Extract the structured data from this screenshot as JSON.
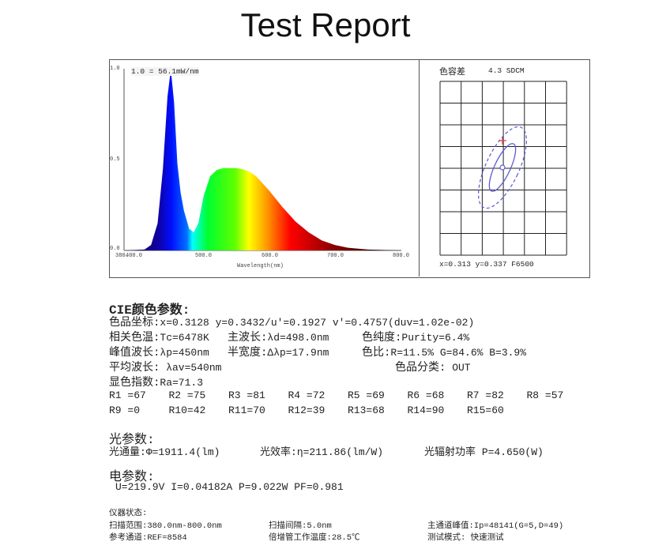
{
  "title": "Test Report",
  "spectrum": {
    "scale_label": "1.0 = 56.1mW/nm",
    "xlabel": "Wavelength(nm)",
    "x_ticks": [
      "380.",
      "400.0",
      "500.0",
      "600.0",
      "700.0",
      "800.0"
    ],
    "y_ticks": [
      "1.0",
      "0.5",
      "0.0"
    ]
  },
  "chart_data": {
    "type": "area",
    "xlabel": "Wavelength(nm)",
    "xlim": [
      380,
      800
    ],
    "ylim": [
      0,
      1.0
    ],
    "x": [
      380,
      410,
      420,
      430,
      438,
      445,
      450,
      455,
      460,
      465,
      470,
      478,
      485,
      492,
      500,
      510,
      520,
      530,
      550,
      560,
      570,
      580,
      600,
      620,
      640,
      660,
      680,
      700,
      720,
      750,
      800
    ],
    "y": [
      0,
      0.005,
      0.03,
      0.15,
      0.45,
      0.85,
      1.0,
      0.82,
      0.48,
      0.32,
      0.22,
      0.12,
      0.1,
      0.15,
      0.3,
      0.41,
      0.445,
      0.455,
      0.455,
      0.448,
      0.435,
      0.41,
      0.33,
      0.24,
      0.16,
      0.1,
      0.055,
      0.03,
      0.015,
      0.005,
      0
    ]
  },
  "sdcm": {
    "label": "色容差",
    "value": "4.3 SDCM",
    "coords": "x=0.313 y=0.337 F6500",
    "colors": {
      "ellipse": "#5a5ad6",
      "marker": "#e04040"
    }
  },
  "cie": {
    "heading": "CIE颜色参数:",
    "lines": [
      {
        "label": "色品坐标:",
        "value": "x=0.3128 y=0.3432/u'=0.1927 v'=0.4757(duv=1.02e-02)"
      },
      {
        "label": "相关色温:",
        "value": "Tc=6478K",
        "label2": "主波长:",
        "value2": "λd=498.0nm",
        "label3": "色纯度:",
        "value3": "Purity=6.4%"
      },
      {
        "label": "峰值波长:",
        "value": "λp=450nm",
        "label2": "半宽度:",
        "value2": "Δλp=17.9nm",
        "label3": "色比:",
        "value3": "R=11.5% G=84.6% B=3.9%"
      },
      {
        "label": "平均波长:",
        "value": " λav=540nm",
        "label3": "色品分类:",
        "value3": " OUT"
      },
      {
        "label": "显色指数:",
        "value": "Ra=71.3"
      }
    ],
    "r_values": [
      "R1 =67",
      "R2 =75",
      "R3 =81",
      "R4 =72",
      "R5 =69",
      "R6 =68",
      "R7 =82",
      "R8 =57",
      "R9 =0",
      "R10=42",
      "R11=70",
      "R12=39",
      "R13=68",
      "R14=90",
      "R15=60"
    ]
  },
  "light": {
    "heading": "光参数:",
    "flux_label": "光通量:",
    "flux": "Φ=1911.4(lm)",
    "eff_label": "光效率:",
    "eff": "η=211.86(lm/W)",
    "rad_label": "光辐射功率",
    "rad": " P=4.650(W)"
  },
  "electric": {
    "heading": "电参数:",
    "values": "U=219.9V I=0.04182A P=9.022W PF=0.981"
  },
  "instrument": {
    "heading": "仪器状态:",
    "scan_range_label": "扫描范围:",
    "scan_range": "380.0nm-800.0nm",
    "scan_step_label": "扫描间隔:",
    "scan_step": "5.0nm",
    "peak_label": "主通道峰值:",
    "peak": "Ip=48141(G=5,D=49)",
    "ref_label": "参考通道:",
    "ref": "REF=8584",
    "temp_label": "倍增管工作温度:",
    "temp": "28.5℃",
    "mode_label": "测试模式:",
    "mode": " 快速测试"
  }
}
